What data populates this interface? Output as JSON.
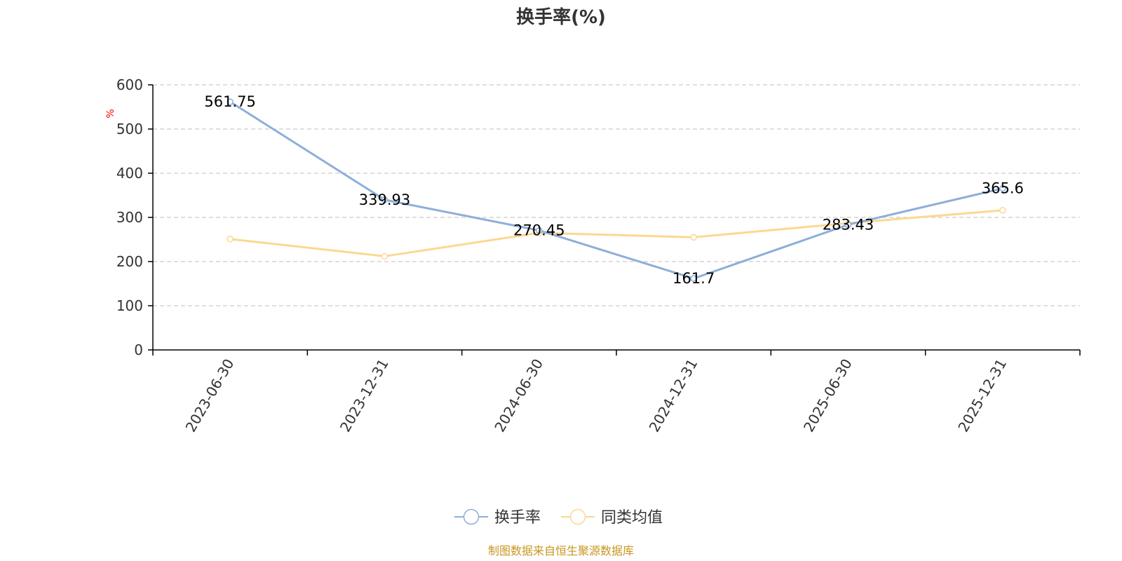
{
  "chart_data": {
    "type": "line",
    "title": "换手率(%)",
    "ylabel": "%",
    "xlabel": "",
    "categories": [
      "2023-06-30",
      "2023-12-31",
      "2024-06-30",
      "2024-12-31",
      "2025-06-30",
      "2025-12-31"
    ],
    "ylim": [
      0,
      600
    ],
    "yticks": [
      0,
      100,
      200,
      300,
      400,
      500,
      600
    ],
    "grid": true,
    "legend_position": "bottom-center",
    "series": [
      {
        "name": "换手率",
        "values": [
          561.75,
          339.93,
          270.45,
          161.7,
          283.43,
          365.6
        ],
        "labels": [
          "561.75",
          "339.93",
          "270.45",
          "161.7",
          "283.43",
          "365.6"
        ],
        "color": "#8eaed9"
      },
      {
        "name": "同类均值",
        "values": [
          251,
          212,
          265,
          255,
          287,
          316
        ],
        "color": "#fcd892"
      }
    ]
  },
  "footer": {
    "source": "制图数据来自恒生聚源数据库"
  },
  "colors": {
    "axis": "#000000",
    "grid": "#cccccc",
    "source": "#c8961e",
    "unit": "#ff0000"
  }
}
